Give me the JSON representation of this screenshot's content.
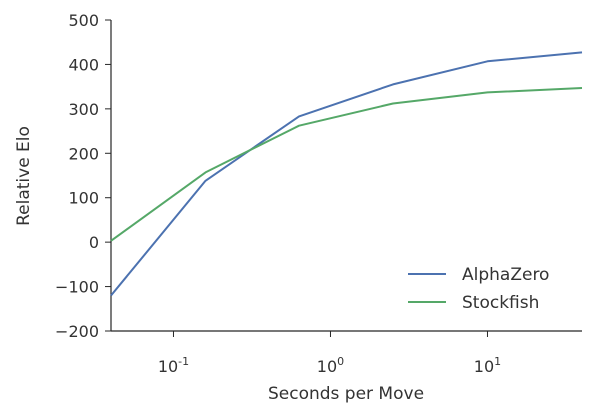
{
  "chart_data": {
    "type": "line",
    "title": "",
    "xlabel": "Seconds per Move",
    "ylabel": "Relative Elo",
    "x_scale": "log",
    "xlim": [
      0.04,
      40
    ],
    "ylim": [
      -200,
      500
    ],
    "x_ticks": [
      {
        "value": 0.1,
        "base": "10",
        "exp": "-1"
      },
      {
        "value": 1,
        "base": "10",
        "exp": "0"
      },
      {
        "value": 10,
        "base": "10",
        "exp": "1"
      }
    ],
    "y_ticks": [
      {
        "value": -200,
        "label": "−200"
      },
      {
        "value": -100,
        "label": "−100"
      },
      {
        "value": 0,
        "label": "0"
      },
      {
        "value": 100,
        "label": "100"
      },
      {
        "value": 200,
        "label": "200"
      },
      {
        "value": 300,
        "label": "300"
      },
      {
        "value": 400,
        "label": "400"
      },
      {
        "value": 500,
        "label": "500"
      }
    ],
    "grid": false,
    "legend_position": "lower-right",
    "series": [
      {
        "name": "AlphaZero",
        "color": "#4c72b0",
        "x": [
          0.04,
          0.16,
          0.63,
          2.5,
          10,
          40
        ],
        "y": [
          -120,
          138,
          283,
          355,
          407,
          427
        ]
      },
      {
        "name": "Stockfish",
        "color": "#55a868",
        "x": [
          0.04,
          0.16,
          0.63,
          2.5,
          10,
          40
        ],
        "y": [
          3,
          157,
          262,
          312,
          337,
          347
        ]
      }
    ]
  }
}
